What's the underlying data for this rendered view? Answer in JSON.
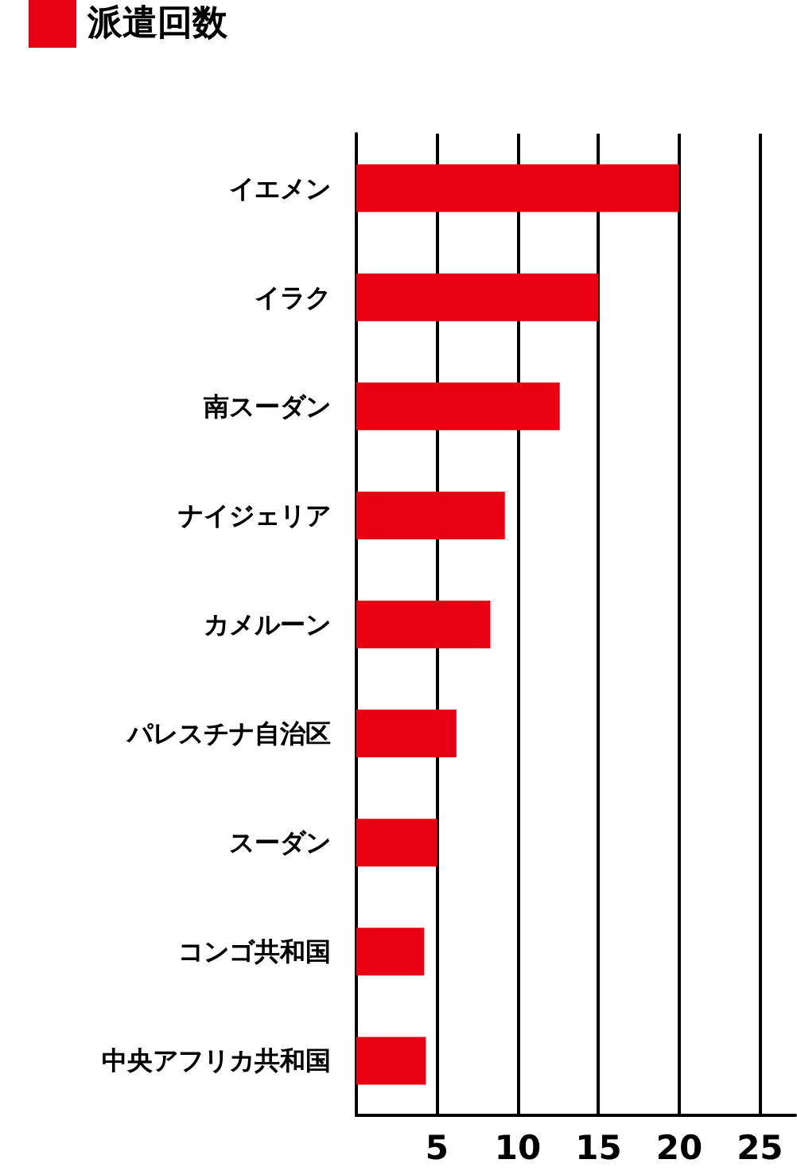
{
  "chart_data": {
    "type": "bar",
    "orientation": "horizontal",
    "categories": [
      "イエメン",
      "イラク",
      "南スーダン",
      "ナイジェリア",
      "カメルーン",
      "パレスチナ自治区",
      "スーダン",
      "コンゴ共和国",
      "中央アフリカ共和国"
    ],
    "series": [
      {
        "name": "派遣回数",
        "color": "#e60012",
        "values": [
          20,
          15,
          12.6,
          9.2,
          8.3,
          6.2,
          5,
          4.2,
          4.3
        ]
      }
    ],
    "xlim": [
      0,
      27.2
    ],
    "xticks": [
      5,
      10,
      15,
      20,
      25
    ],
    "grid": "x",
    "legend": "top left"
  }
}
